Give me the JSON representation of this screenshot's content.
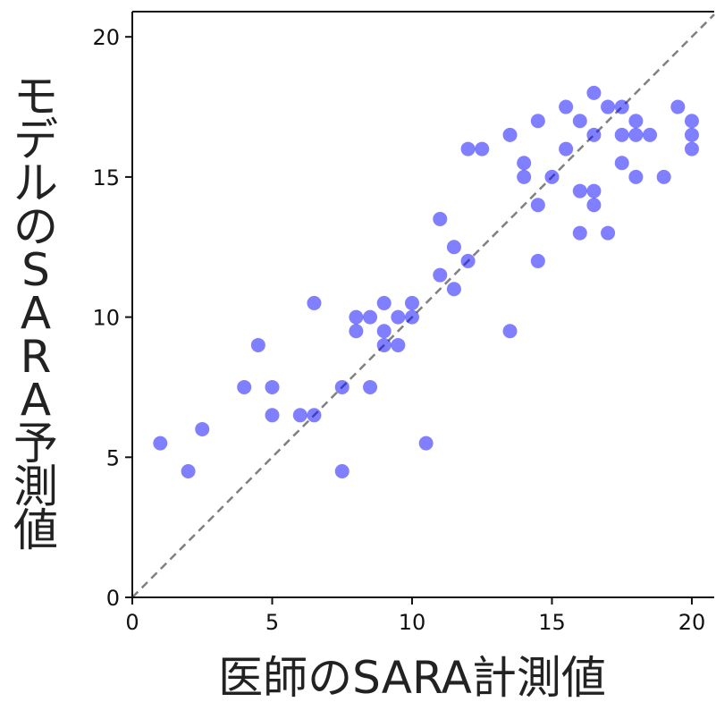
{
  "chart_data": {
    "type": "scatter",
    "xlabel": "医師のSARA計測値",
    "ylabel_chars": [
      "モ",
      "デ",
      "ル",
      "の",
      "S",
      "A",
      "R",
      "A",
      "予",
      "測",
      "値"
    ],
    "xlim": [
      0,
      20.8
    ],
    "ylim": [
      0,
      20.9
    ],
    "xticks": [
      0,
      5,
      10,
      15,
      20
    ],
    "yticks": [
      0,
      5,
      10,
      15,
      20
    ],
    "grid": false,
    "reference_line": {
      "style": "dashed",
      "color": "#808080",
      "from": [
        0,
        0
      ],
      "to": [
        20.8,
        20.8
      ]
    },
    "series": [
      {
        "color": "#0000ff",
        "points": [
          [
            1,
            5.5
          ],
          [
            2,
            4.5
          ],
          [
            2.5,
            6
          ],
          [
            4,
            7.5
          ],
          [
            4.5,
            9
          ],
          [
            5,
            7.5
          ],
          [
            5,
            6.5
          ],
          [
            6,
            6.5
          ],
          [
            6.5,
            6.5
          ],
          [
            6.5,
            10.5
          ],
          [
            7.5,
            7.5
          ],
          [
            7.5,
            4.5
          ],
          [
            8,
            10
          ],
          [
            8,
            9.5
          ],
          [
            8.5,
            10
          ],
          [
            8.5,
            7.5
          ],
          [
            9,
            10.5
          ],
          [
            9,
            9.5
          ],
          [
            9,
            9
          ],
          [
            9.5,
            10
          ],
          [
            9.5,
            9
          ],
          [
            10,
            10.5
          ],
          [
            10,
            10
          ],
          [
            10.5,
            5.5
          ],
          [
            11,
            13.5
          ],
          [
            11,
            11.5
          ],
          [
            11.5,
            12.5
          ],
          [
            11.5,
            11
          ],
          [
            12,
            16
          ],
          [
            12,
            12
          ],
          [
            12.5,
            16
          ],
          [
            13.5,
            16.5
          ],
          [
            13.5,
            9.5
          ],
          [
            14,
            15.5
          ],
          [
            14,
            15
          ],
          [
            14.5,
            17
          ],
          [
            14.5,
            14
          ],
          [
            14.5,
            12
          ],
          [
            15,
            15
          ],
          [
            15.5,
            17.5
          ],
          [
            15.5,
            16
          ],
          [
            16,
            17
          ],
          [
            16,
            14.5
          ],
          [
            16,
            13
          ],
          [
            16.5,
            18
          ],
          [
            16.5,
            16.5
          ],
          [
            16.5,
            14.5
          ],
          [
            16.5,
            14
          ],
          [
            17,
            17.5
          ],
          [
            17,
            13
          ],
          [
            17.5,
            17.5
          ],
          [
            17.5,
            16.5
          ],
          [
            17.5,
            15.5
          ],
          [
            18,
            17
          ],
          [
            18,
            16.5
          ],
          [
            18,
            15
          ],
          [
            18.5,
            16.5
          ],
          [
            19,
            15
          ],
          [
            19.5,
            17.5
          ],
          [
            20,
            17
          ],
          [
            20,
            16.5
          ],
          [
            20,
            16
          ]
        ]
      }
    ]
  }
}
